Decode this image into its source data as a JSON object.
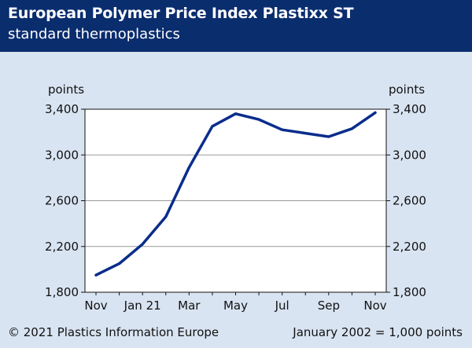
{
  "header": {
    "title": "European Polymer Price Index Plastixx ST",
    "subtitle": "standard thermoplastics"
  },
  "footer": {
    "copyright": "© 2021 Plastics Information Europe",
    "baseline_note": "January 2002 = 1,000 points"
  },
  "colors": {
    "header_bg": "#0a2d6e",
    "page_bg": "#d9e4f2",
    "line": "#0a2d8c"
  },
  "chart_data": {
    "type": "line",
    "ylabel_left": "points",
    "ylabel_right": "points",
    "ylim": [
      1800,
      3400
    ],
    "yticks": [
      1800,
      2200,
      2600,
      3000,
      3400
    ],
    "ytick_labels": [
      "1,800",
      "2,200",
      "2,600",
      "3,000",
      "3,400"
    ],
    "x_tick_labels": [
      "Nov",
      "Jan 21",
      "Mar",
      "May",
      "Jul",
      "Sep",
      "Nov"
    ],
    "x_tick_positions": [
      0,
      2,
      4,
      6,
      8,
      10,
      12
    ],
    "grid": true,
    "series": [
      {
        "x": [
          0,
          1,
          2,
          3,
          4,
          5,
          6,
          7,
          8,
          9,
          10,
          11,
          12
        ],
        "values": [
          1950,
          2050,
          2220,
          2460,
          2890,
          3250,
          3360,
          3310,
          3220,
          3190,
          3160,
          3230,
          3370
        ]
      }
    ]
  }
}
